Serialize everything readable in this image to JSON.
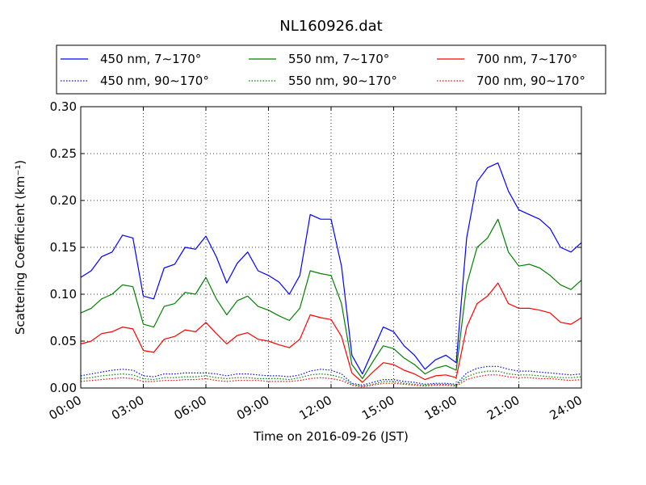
{
  "chart_data": {
    "type": "line",
    "title": "NL160926.dat",
    "xlabel": "Time on 2016-09-26 (JST)",
    "ylabel": "Scattering Coefficient (km⁻¹)",
    "xlim": [
      "00:00",
      "24:00"
    ],
    "ylim": [
      0,
      0.3
    ],
    "x_ticks": [
      "00:00",
      "03:00",
      "06:00",
      "09:00",
      "12:00",
      "15:00",
      "18:00",
      "21:00",
      "24:00"
    ],
    "y_ticks": [
      "0.00",
      "0.05",
      "0.10",
      "0.15",
      "0.20",
      "0.25",
      "0.30"
    ],
    "grid": true,
    "legend_position": "top",
    "x": [
      "00:00",
      "00:30",
      "01:00",
      "01:30",
      "02:00",
      "02:30",
      "03:00",
      "03:30",
      "04:00",
      "04:30",
      "05:00",
      "05:30",
      "06:00",
      "06:30",
      "07:00",
      "07:30",
      "08:00",
      "08:30",
      "09:00",
      "09:30",
      "10:00",
      "10:30",
      "11:00",
      "11:30",
      "12:00",
      "12:30",
      "13:00",
      "13:30",
      "14:00",
      "14:30",
      "15:00",
      "15:30",
      "16:00",
      "16:30",
      "17:00",
      "17:30",
      "18:00",
      "18:30",
      "19:00",
      "19:30",
      "20:00",
      "20:30",
      "21:00",
      "21:30",
      "22:00",
      "22:30",
      "23:00",
      "23:30",
      "24:00"
    ],
    "series": [
      {
        "name": "450 nm, 7∼170°",
        "color": "#0000ff",
        "style": "solid",
        "values": [
          0.118,
          0.125,
          0.14,
          0.145,
          0.163,
          0.16,
          0.098,
          0.095,
          0.128,
          0.132,
          0.15,
          0.148,
          0.162,
          0.14,
          0.112,
          0.133,
          0.145,
          0.125,
          0.12,
          0.113,
          0.1,
          0.12,
          0.185,
          0.18,
          0.18,
          0.13,
          0.035,
          0.015,
          0.04,
          0.065,
          0.06,
          0.045,
          0.035,
          0.02,
          0.03,
          0.035,
          0.027,
          0.16,
          0.22,
          0.235,
          0.24,
          0.21,
          0.19,
          0.185,
          0.18,
          0.17,
          0.15,
          0.145,
          0.155
        ]
      },
      {
        "name": "550 nm, 7∼170°",
        "color": "#008000",
        "style": "solid",
        "values": [
          0.08,
          0.085,
          0.095,
          0.1,
          0.11,
          0.108,
          0.068,
          0.065,
          0.087,
          0.09,
          0.102,
          0.1,
          0.118,
          0.095,
          0.078,
          0.093,
          0.098,
          0.087,
          0.083,
          0.077,
          0.072,
          0.085,
          0.125,
          0.122,
          0.12,
          0.09,
          0.025,
          0.01,
          0.028,
          0.045,
          0.042,
          0.032,
          0.025,
          0.015,
          0.021,
          0.024,
          0.019,
          0.11,
          0.15,
          0.16,
          0.18,
          0.145,
          0.13,
          0.132,
          0.128,
          0.12,
          0.11,
          0.105,
          0.115
        ]
      },
      {
        "name": "700 nm, 7∼170°",
        "color": "#ff0000",
        "style": "solid",
        "values": [
          0.047,
          0.05,
          0.058,
          0.06,
          0.065,
          0.063,
          0.04,
          0.038,
          0.052,
          0.055,
          0.062,
          0.06,
          0.07,
          0.058,
          0.047,
          0.056,
          0.059,
          0.052,
          0.05,
          0.046,
          0.043,
          0.052,
          0.078,
          0.075,
          0.073,
          0.055,
          0.016,
          0.006,
          0.017,
          0.027,
          0.025,
          0.019,
          0.015,
          0.009,
          0.013,
          0.014,
          0.011,
          0.065,
          0.09,
          0.098,
          0.112,
          0.09,
          0.085,
          0.085,
          0.083,
          0.08,
          0.07,
          0.068,
          0.075
        ]
      },
      {
        "name": "450 nm, 90∼170°",
        "color": "#0000ff",
        "style": "dotted",
        "values": [
          0.013,
          0.015,
          0.017,
          0.019,
          0.02,
          0.019,
          0.013,
          0.012,
          0.015,
          0.015,
          0.016,
          0.016,
          0.016,
          0.015,
          0.013,
          0.015,
          0.015,
          0.014,
          0.013,
          0.013,
          0.012,
          0.014,
          0.018,
          0.02,
          0.019,
          0.015,
          0.005,
          0.003,
          0.006,
          0.009,
          0.009,
          0.007,
          0.006,
          0.004,
          0.005,
          0.005,
          0.004,
          0.016,
          0.021,
          0.023,
          0.023,
          0.02,
          0.018,
          0.018,
          0.017,
          0.016,
          0.015,
          0.014,
          0.015
        ]
      },
      {
        "name": "550 nm, 90∼170°",
        "color": "#008000",
        "style": "dotted",
        "values": [
          0.01,
          0.011,
          0.013,
          0.014,
          0.015,
          0.014,
          0.01,
          0.009,
          0.011,
          0.011,
          0.012,
          0.012,
          0.013,
          0.011,
          0.01,
          0.011,
          0.011,
          0.01,
          0.01,
          0.01,
          0.009,
          0.011,
          0.014,
          0.015,
          0.014,
          0.011,
          0.004,
          0.002,
          0.004,
          0.007,
          0.007,
          0.005,
          0.004,
          0.003,
          0.004,
          0.004,
          0.003,
          0.012,
          0.016,
          0.018,
          0.018,
          0.015,
          0.014,
          0.014,
          0.013,
          0.012,
          0.011,
          0.011,
          0.012
        ]
      },
      {
        "name": "700 nm, 90∼170°",
        "color": "#ff0000",
        "style": "dotted",
        "values": [
          0.007,
          0.008,
          0.009,
          0.01,
          0.011,
          0.01,
          0.007,
          0.007,
          0.008,
          0.008,
          0.009,
          0.009,
          0.01,
          0.008,
          0.007,
          0.008,
          0.008,
          0.008,
          0.007,
          0.007,
          0.007,
          0.008,
          0.01,
          0.011,
          0.01,
          0.008,
          0.003,
          0.001,
          0.003,
          0.005,
          0.005,
          0.004,
          0.003,
          0.002,
          0.003,
          0.003,
          0.002,
          0.009,
          0.012,
          0.014,
          0.014,
          0.012,
          0.011,
          0.011,
          0.01,
          0.01,
          0.009,
          0.008,
          0.009
        ]
      }
    ]
  }
}
